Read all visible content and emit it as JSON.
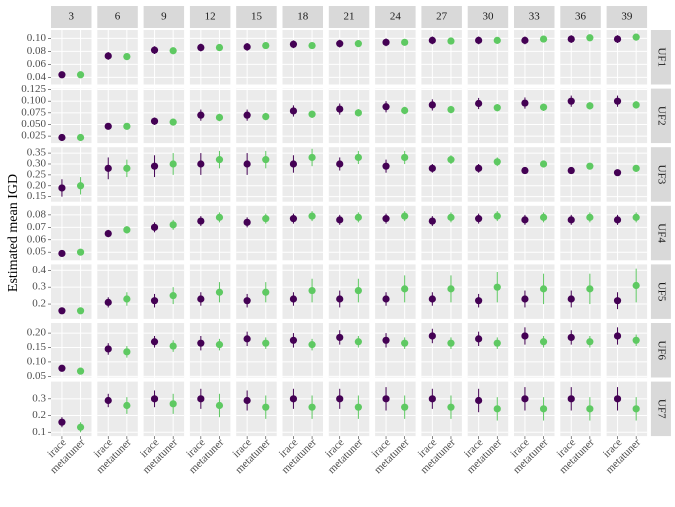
{
  "chart_data": {
    "type": "faceted-pointrange",
    "y_label": "Estimated mean IGD",
    "columns": [
      "3",
      "6",
      "9",
      "12",
      "15",
      "18",
      "21",
      "24",
      "27",
      "30",
      "33",
      "36",
      "39"
    ],
    "categories": [
      "irace",
      "metatuner"
    ],
    "colors": [
      "#440154",
      "#5ec962"
    ],
    "grid": true,
    "rows": [
      {
        "name": "UF1",
        "ylim": [
          0.029,
          0.113
        ],
        "yticks": [
          0.04,
          0.06,
          0.08,
          {
            "value": 0.1,
            "label": "0.10"
          }
        ],
        "series": [
          {
            "values": [
              0.044,
              0.073,
              0.082,
              0.086,
              0.087,
              0.091,
              0.092,
              0.094,
              0.097,
              0.097,
              0.097,
              0.099,
              0.099
            ],
            "errors": [
              0.003,
              0.006,
              0.006,
              0.006,
              0.006,
              0.006,
              0.006,
              0.006,
              0.006,
              0.006,
              0.006,
              0.006,
              0.006
            ]
          },
          {
            "values": [
              0.044,
              0.072,
              0.081,
              0.086,
              0.089,
              0.089,
              0.092,
              0.094,
              0.096,
              0.097,
              0.099,
              0.101,
              0.102
            ],
            "errors": [
              0.003,
              0.004,
              0.005,
              0.005,
              0.005,
              0.005,
              0.005,
              0.005,
              0.005,
              0.005,
              0.005,
              0.005,
              0.005
            ]
          }
        ]
      },
      {
        "name": "UF2",
        "ylim": [
          0.01,
          0.127
        ],
        "yticks": [
          0.025,
          {
            "value": 0.05,
            "label": "0.050"
          },
          0.075,
          {
            "value": 0.1,
            "label": "0.100"
          },
          0.125
        ],
        "series": [
          {
            "values": [
              0.022,
              0.046,
              0.057,
              0.07,
              0.07,
              0.079,
              0.083,
              0.088,
              0.092,
              0.095,
              0.096,
              0.1,
              0.1
            ],
            "errors": [
              0.002,
              0.004,
              0.008,
              0.012,
              0.012,
              0.012,
              0.012,
              0.012,
              0.012,
              0.012,
              0.012,
              0.012,
              0.012
            ]
          },
          {
            "values": [
              0.022,
              0.046,
              0.055,
              0.065,
              0.067,
              0.072,
              0.075,
              0.08,
              0.082,
              0.086,
              0.087,
              0.09,
              0.092
            ],
            "errors": [
              0.002,
              0.004,
              0.006,
              0.008,
              0.008,
              0.008,
              0.008,
              0.008,
              0.008,
              0.008,
              0.008,
              0.008,
              0.008
            ]
          }
        ]
      },
      {
        "name": "UF3",
        "ylim": [
          0.127,
          0.377
        ],
        "yticks": [
          0.15,
          {
            "value": 0.2,
            "label": "0.20"
          },
          0.25,
          {
            "value": 0.3,
            "label": "0.30"
          },
          0.35
        ],
        "series": [
          {
            "values": [
              0.19,
              0.28,
              0.29,
              0.3,
              0.3,
              0.3,
              0.3,
              0.29,
              0.28,
              0.28,
              0.27,
              0.27,
              0.26
            ],
            "errors": [
              0.04,
              0.05,
              0.05,
              0.05,
              0.05,
              0.04,
              0.03,
              0.03,
              0.02,
              0.02,
              0.015,
              0.01,
              0.01
            ]
          },
          {
            "values": [
              0.2,
              0.28,
              0.3,
              0.32,
              0.32,
              0.33,
              0.33,
              0.33,
              0.32,
              0.31,
              0.3,
              0.29,
              0.28
            ],
            "errors": [
              0.04,
              0.04,
              0.05,
              0.04,
              0.04,
              0.04,
              0.03,
              0.03,
              0.02,
              0.02,
              0.015,
              0.015,
              0.01
            ]
          }
        ]
      },
      {
        "name": "UF4",
        "ylim": [
          0.0435,
          0.0873
        ],
        "yticks": [
          0.05,
          0.06,
          0.07,
          0.08
        ],
        "series": [
          {
            "values": [
              0.049,
              0.065,
              0.07,
              0.075,
              0.074,
              0.077,
              0.076,
              0.077,
              0.075,
              0.077,
              0.076,
              0.076,
              0.076
            ],
            "errors": [
              0.001,
              0.003,
              0.004,
              0.004,
              0.004,
              0.004,
              0.004,
              0.004,
              0.004,
              0.004,
              0.004,
              0.004,
              0.004
            ]
          },
          {
            "values": [
              0.05,
              0.068,
              0.072,
              0.078,
              0.077,
              0.079,
              0.078,
              0.079,
              0.078,
              0.079,
              0.078,
              0.078,
              0.078
            ],
            "errors": [
              0.001,
              0.003,
              0.004,
              0.004,
              0.004,
              0.004,
              0.004,
              0.004,
              0.004,
              0.004,
              0.004,
              0.004,
              0.004
            ]
          }
        ]
      },
      {
        "name": "UF5",
        "ylim": [
          0.112,
          0.435
        ],
        "yticks": [
          0.2,
          0.3,
          0.4
        ],
        "series": [
          {
            "values": [
              0.16,
              0.21,
              0.22,
              0.23,
              0.22,
              0.23,
              0.23,
              0.23,
              0.23,
              0.22,
              0.23,
              0.23,
              0.22
            ],
            "errors": [
              0.01,
              0.03,
              0.04,
              0.04,
              0.04,
              0.04,
              0.05,
              0.04,
              0.04,
              0.04,
              0.05,
              0.05,
              0.05
            ]
          },
          {
            "values": [
              0.16,
              0.23,
              0.25,
              0.27,
              0.27,
              0.28,
              0.28,
              0.29,
              0.29,
              0.3,
              0.29,
              0.29,
              0.31
            ],
            "errors": [
              0.01,
              0.04,
              0.05,
              0.06,
              0.06,
              0.07,
              0.07,
              0.08,
              0.08,
              0.09,
              0.09,
              0.09,
              0.1
            ]
          }
        ]
      },
      {
        "name": "UF6",
        "ylim": [
          0.046,
          0.235
        ],
        "yticks": [
          0.05,
          {
            "value": 0.1,
            "label": "0.10"
          },
          0.15,
          {
            "value": 0.2,
            "label": "0.20"
          }
        ],
        "series": [
          {
            "values": [
              0.078,
              0.145,
              0.17,
              0.165,
              0.18,
              0.175,
              0.185,
              0.175,
              0.19,
              0.18,
              0.19,
              0.185,
              0.19
            ],
            "errors": [
              0.01,
              0.02,
              0.02,
              0.025,
              0.025,
              0.025,
              0.025,
              0.025,
              0.025,
              0.025,
              0.03,
              0.025,
              0.03
            ]
          },
          {
            "values": [
              0.068,
              0.135,
              0.155,
              0.16,
              0.165,
              0.16,
              0.17,
              0.165,
              0.165,
              0.165,
              0.17,
              0.17,
              0.175
            ],
            "errors": [
              0.01,
              0.02,
              0.02,
              0.02,
              0.02,
              0.02,
              0.02,
              0.02,
              0.02,
              0.02,
              0.02,
              0.02,
              0.02
            ]
          }
        ]
      },
      {
        "name": "UF7",
        "ylim": [
          0.077,
          0.403
        ],
        "yticks": [
          0.1,
          0.2,
          0.3
        ],
        "series": [
          {
            "values": [
              0.16,
              0.29,
              0.3,
              0.3,
              0.29,
              0.3,
              0.3,
              0.3,
              0.3,
              0.29,
              0.3,
              0.3,
              0.3
            ],
            "errors": [
              0.03,
              0.04,
              0.05,
              0.06,
              0.06,
              0.06,
              0.06,
              0.07,
              0.06,
              0.07,
              0.07,
              0.07,
              0.07
            ]
          },
          {
            "values": [
              0.13,
              0.26,
              0.27,
              0.26,
              0.25,
              0.25,
              0.25,
              0.25,
              0.25,
              0.24,
              0.24,
              0.24,
              0.24
            ],
            "errors": [
              0.03,
              0.05,
              0.06,
              0.07,
              0.07,
              0.07,
              0.07,
              0.07,
              0.07,
              0.07,
              0.07,
              0.07,
              0.07
            ]
          }
        ]
      }
    ]
  }
}
